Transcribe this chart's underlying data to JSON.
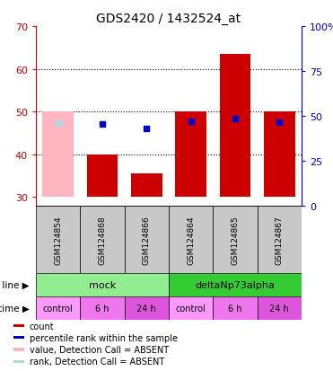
{
  "title": "GDS2420 / 1432524_at",
  "samples": [
    "GSM124854",
    "GSM124868",
    "GSM124866",
    "GSM124864",
    "GSM124865",
    "GSM124867"
  ],
  "bar_bottom": 30,
  "bar_tops_count": [
    50,
    40,
    35.5,
    50,
    63.5,
    50
  ],
  "bar_absent": [
    true,
    false,
    false,
    false,
    false,
    false
  ],
  "rank_values_pct": [
    46,
    45.5,
    43,
    47,
    48.5,
    46.5
  ],
  "rank_absent": [
    true,
    false,
    false,
    false,
    false,
    false
  ],
  "ylim_left": [
    28,
    70
  ],
  "ylim_right": [
    0,
    100
  ],
  "yticks_left": [
    30,
    40,
    50,
    60,
    70
  ],
  "yticks_right": [
    0,
    25,
    50,
    75,
    100
  ],
  "ytick_labels_right": [
    "0",
    "25",
    "50",
    "75",
    "100%"
  ],
  "cell_line_groups": [
    {
      "label": "mock",
      "span": [
        0,
        3
      ],
      "color": "#90EE90"
    },
    {
      "label": "deltaNp73alpha",
      "span": [
        3,
        6
      ],
      "color": "#33CC33"
    }
  ],
  "time_groups": [
    {
      "label": "control",
      "span": [
        0,
        1
      ],
      "color": "#FF99FF"
    },
    {
      "label": "6 h",
      "span": [
        1,
        2
      ],
      "color": "#EE77EE"
    },
    {
      "label": "24 h",
      "span": [
        2,
        3
      ],
      "color": "#DD55DD"
    },
    {
      "label": "control",
      "span": [
        3,
        4
      ],
      "color": "#FF99FF"
    },
    {
      "label": "6 h",
      "span": [
        4,
        5
      ],
      "color": "#EE77EE"
    },
    {
      "label": "24 h",
      "span": [
        5,
        6
      ],
      "color": "#DD55DD"
    }
  ],
  "bar_color_present": "#CC0000",
  "bar_color_absent": "#FFB6C1",
  "rank_color_present": "#0000CC",
  "rank_color_absent": "#ADD8E6",
  "left_tick_color": "#CC0000",
  "right_tick_color": "#0000CC",
  "label_cell_line": "cell line",
  "label_time": "time",
  "legend_items": [
    {
      "color": "#CC0000",
      "label": "count"
    },
    {
      "color": "#0000CC",
      "label": "percentile rank within the sample"
    },
    {
      "color": "#FFB6C1",
      "label": "value, Detection Call = ABSENT"
    },
    {
      "color": "#ADD8E6",
      "label": "rank, Detection Call = ABSENT"
    }
  ]
}
